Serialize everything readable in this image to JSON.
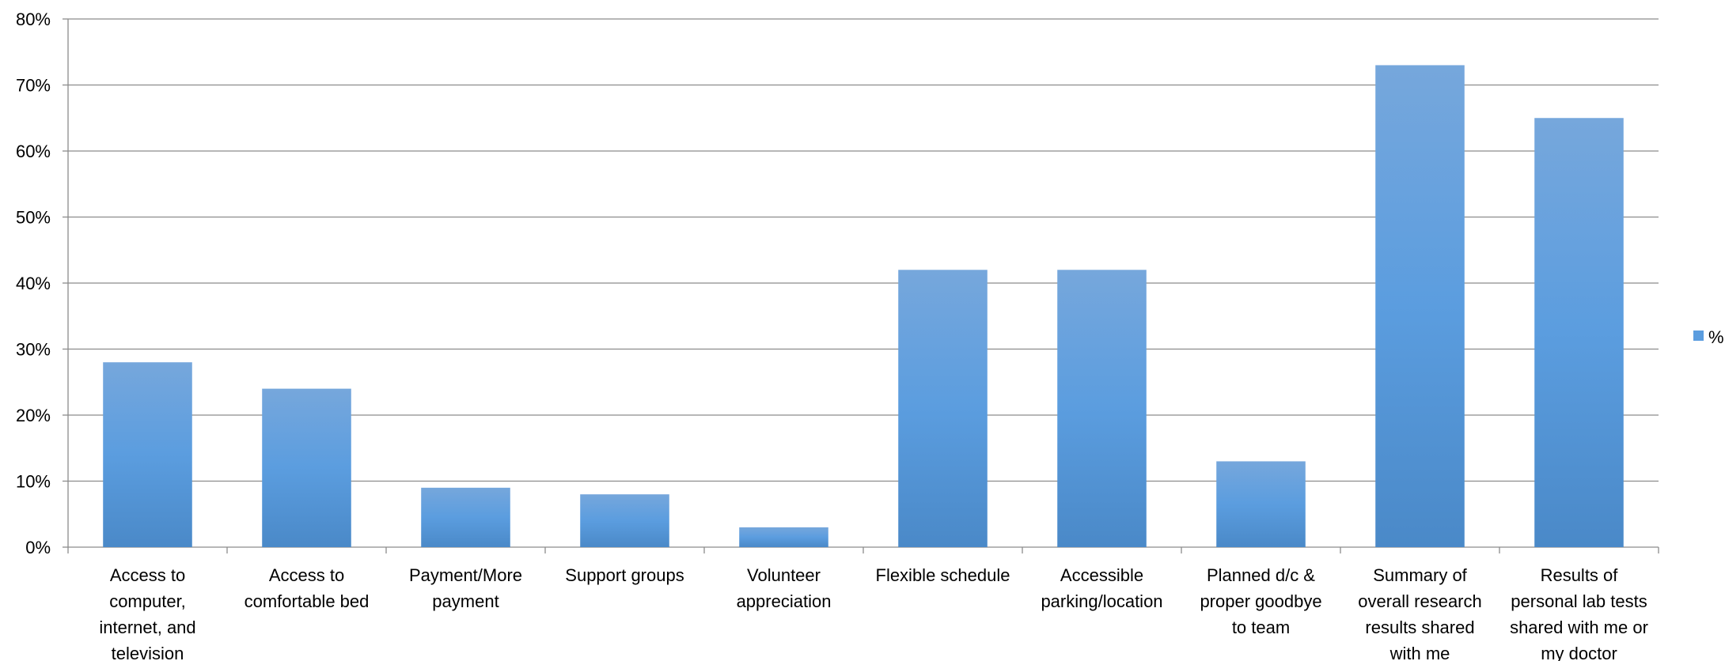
{
  "chart_data": {
    "type": "bar",
    "categories": [
      "Access to computer, internet, and television",
      "Access to comfortable bed",
      "Payment/More payment",
      "Support groups",
      "Volunteer appreciation",
      "Flexible schedule",
      "Accessible parking/location",
      "Planned d/c & proper goodbye to team",
      "Summary of overall research results shared with me",
      "Results of personal lab tests shared with me or my doctor"
    ],
    "category_label_lines": [
      [
        "Access to",
        "computer,",
        "internet, and",
        "television"
      ],
      [
        "Access to",
        "comfortable bed"
      ],
      [
        "Payment/More",
        "payment"
      ],
      [
        "Support groups"
      ],
      [
        "Volunteer",
        "appreciation"
      ],
      [
        "Flexible schedule"
      ],
      [
        "Accessible",
        "parking/location"
      ],
      [
        "Planned d/c &",
        "proper goodbye",
        "to team"
      ],
      [
        "Summary of",
        "overall research",
        "results shared",
        "with me"
      ],
      [
        "Results of",
        "personal lab tests",
        "shared with me or",
        "my doctor"
      ]
    ],
    "series": [
      {
        "name": "%",
        "values": [
          28,
          24,
          9,
          8,
          3,
          42,
          42,
          13,
          73,
          65
        ]
      }
    ],
    "title": "",
    "xlabel": "",
    "ylabel": "",
    "ylim": [
      0,
      80
    ],
    "yticks": [
      0,
      10,
      20,
      30,
      40,
      50,
      60,
      70,
      80
    ],
    "ytick_labels": [
      "0%",
      "10%",
      "20%",
      "30%",
      "40%",
      "50%",
      "60%",
      "70%",
      "80%"
    ],
    "grid": true,
    "legend_position": "right",
    "colors": {
      "bar_top": "#76a7dc",
      "bar_mid": "#5b9ddf",
      "bar_bottom": "#4a89c8",
      "gridline": "#8c8c8c",
      "axis": "#8c8c8c"
    }
  }
}
